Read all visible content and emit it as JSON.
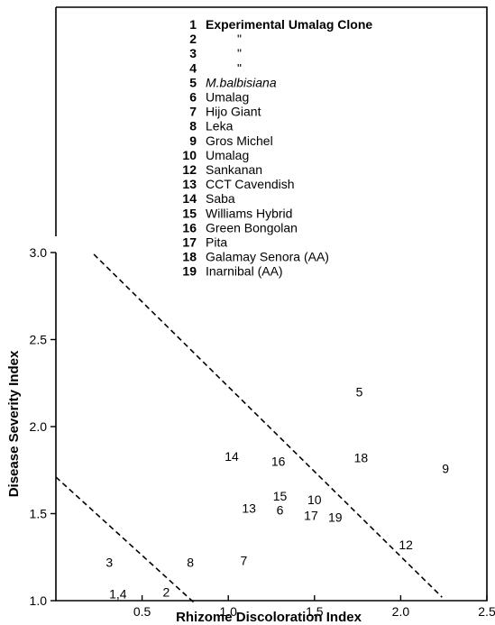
{
  "chart_data": {
    "type": "scatter",
    "xlabel": "Rhizome Discoloration Index",
    "ylabel": "Disease Severity Index",
    "xlim": [
      0.0,
      2.5
    ],
    "ylim": [
      1.0,
      3.0
    ],
    "x_ticks": [
      "0.5",
      "1.0",
      "1.5",
      "2.0",
      "2.5"
    ],
    "y_ticks": [
      "1.0",
      "1.5",
      "2.0",
      "2.5",
      "3.0"
    ],
    "points": [
      {
        "label": "1,4",
        "x": 0.36,
        "y": 1.04
      },
      {
        "label": "2",
        "x": 0.64,
        "y": 1.05
      },
      {
        "label": "3",
        "x": 0.31,
        "y": 1.22
      },
      {
        "label": "5",
        "x": 1.76,
        "y": 2.2
      },
      {
        "label": "7",
        "x": 1.09,
        "y": 1.23
      },
      {
        "label": "8",
        "x": 0.78,
        "y": 1.22
      },
      {
        "label": "9",
        "x": 2.26,
        "y": 1.76
      },
      {
        "label": "10",
        "x": 1.5,
        "y": 1.58
      },
      {
        "label": "12",
        "x": 2.03,
        "y": 1.32
      },
      {
        "label": "13",
        "x": 1.12,
        "y": 1.53
      },
      {
        "label": "14",
        "x": 1.02,
        "y": 1.83
      },
      {
        "label": "15",
        "x": 1.3,
        "y": 1.6
      },
      {
        "label": "16",
        "x": 1.29,
        "y": 1.8
      },
      {
        "label": "17",
        "x": 1.48,
        "y": 1.49
      },
      {
        "label": "18",
        "x": 1.77,
        "y": 1.82
      },
      {
        "label": "19",
        "x": 1.62,
        "y": 1.48
      },
      {
        "label": "6",
        "x": 1.3,
        "y": 1.52
      }
    ],
    "lines": [
      {
        "style": "dashed",
        "x": [
          0.22,
          2.24
        ],
        "y": [
          2.99,
          1.02
        ]
      },
      {
        "style": "dashed",
        "x": [
          0.0,
          0.8
        ],
        "y": [
          1.71,
          0.99
        ]
      }
    ],
    "legend": [
      {
        "num": "1",
        "name": "Experimental Umalag Clone",
        "style": "bold"
      },
      {
        "num": "2",
        "name": "\"",
        "style": "ditto"
      },
      {
        "num": "3",
        "name": "\"",
        "style": "ditto"
      },
      {
        "num": "4",
        "name": "\"",
        "style": "ditto"
      },
      {
        "num": "5",
        "name": "M.balbisiana",
        "style": "italic"
      },
      {
        "num": "6",
        "name": "Umalag",
        "style": "normal"
      },
      {
        "num": "7",
        "name": "Hijo Giant",
        "style": "normal"
      },
      {
        "num": "8",
        "name": "Leka",
        "style": "normal"
      },
      {
        "num": "9",
        "name": "Gros Michel",
        "style": "normal"
      },
      {
        "num": "10",
        "name": "Umalag",
        "style": "normal"
      },
      {
        "num": "12",
        "name": "Sankanan",
        "style": "normal"
      },
      {
        "num": "13",
        "name": "CCT Cavendish",
        "style": "normal"
      },
      {
        "num": "14",
        "name": "Saba",
        "style": "normal"
      },
      {
        "num": "15",
        "name": "Williams Hybrid",
        "style": "normal"
      },
      {
        "num": "16",
        "name": "Green Bongolan",
        "style": "normal"
      },
      {
        "num": "17",
        "name": "Pita",
        "style": "normal"
      },
      {
        "num": "18",
        "name": "Galamay Senora (AA)",
        "style": "normal"
      },
      {
        "num": "19",
        "name": "Inarnibal (AA)",
        "style": "normal"
      }
    ]
  }
}
